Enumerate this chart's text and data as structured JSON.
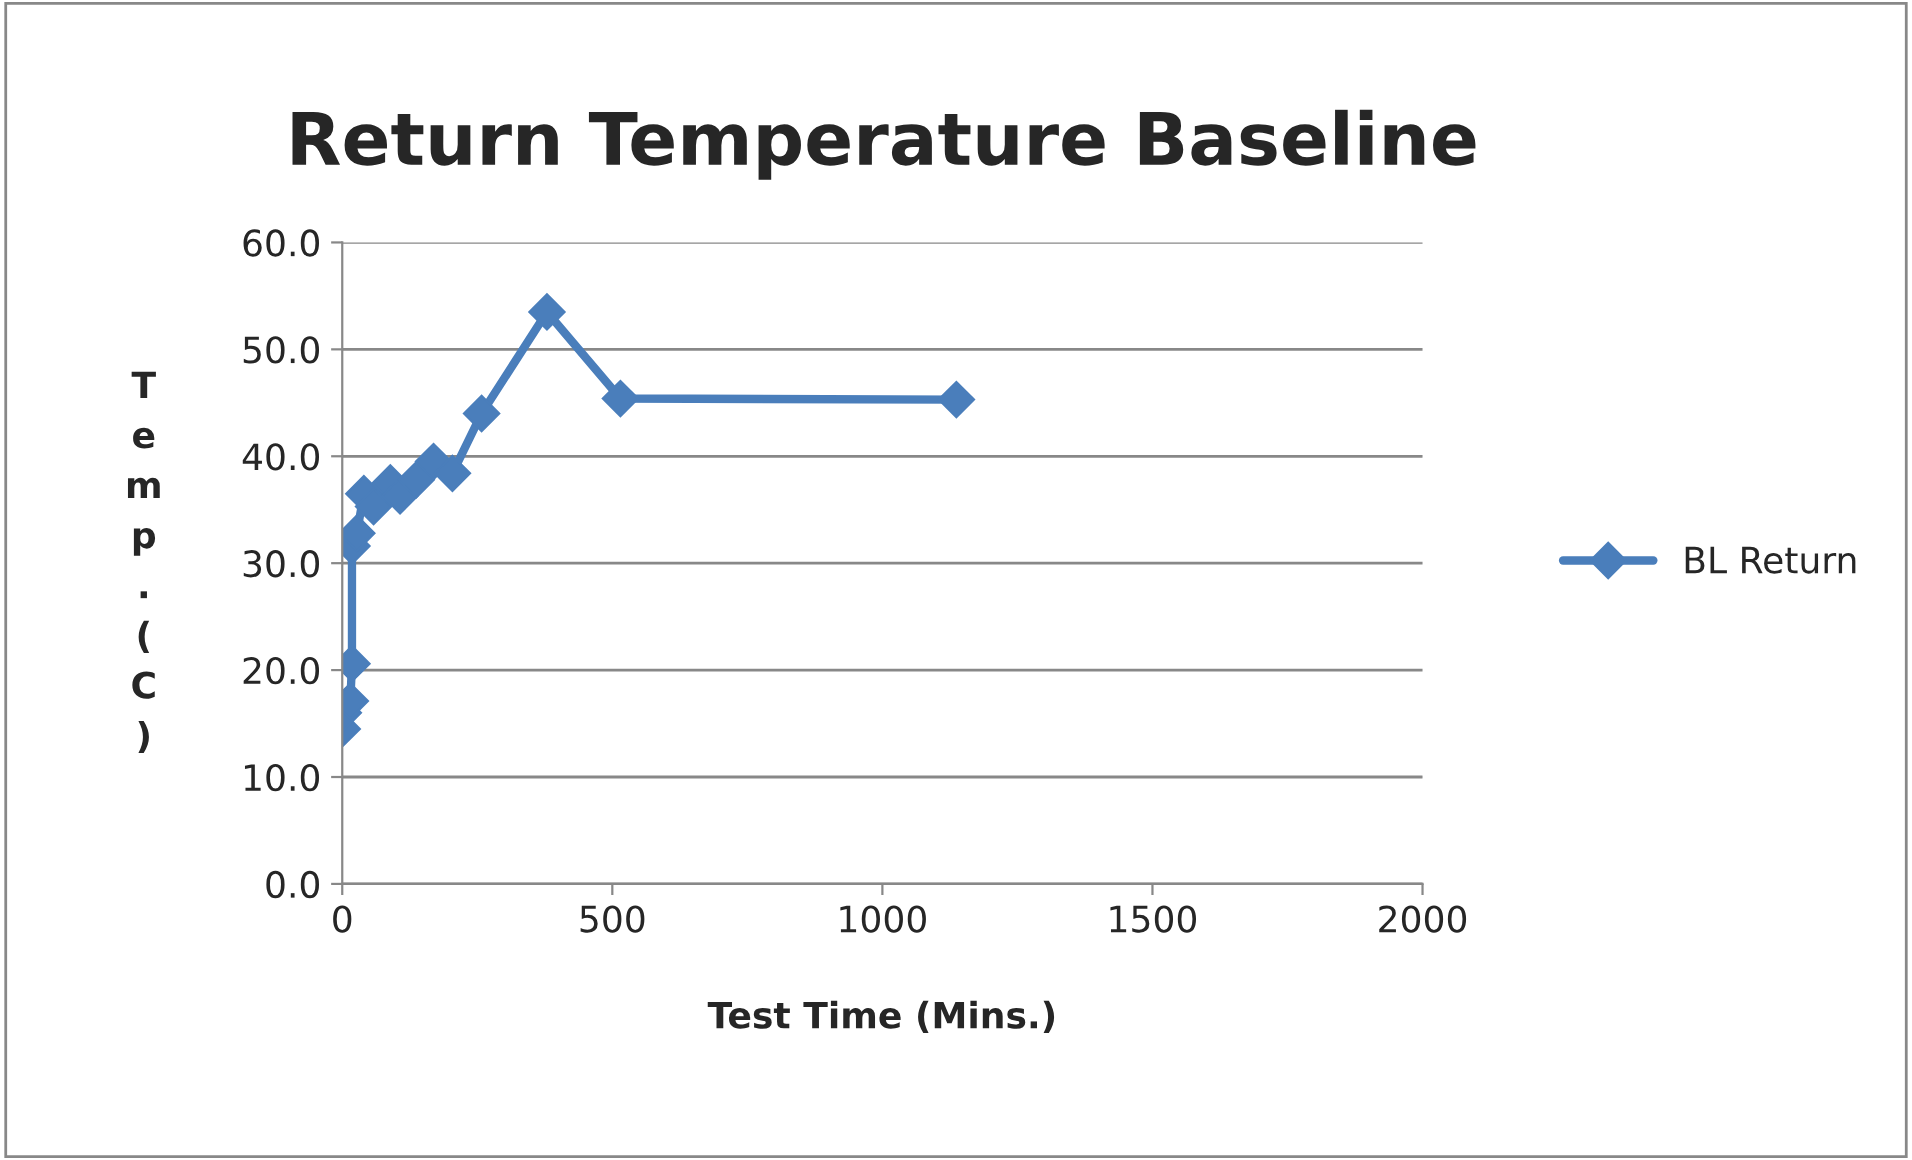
{
  "chart_data": {
    "type": "line",
    "title": "Return Temperature Baseline",
    "xlabel": "Test Time (Mins.)",
    "ylabel": "Temp. (C)",
    "series": [
      {
        "name": "BL Return",
        "color": "#4a7ebb",
        "x": [
          0,
          2,
          15,
          18,
          18,
          27,
          40,
          58,
          89,
          107,
          137,
          169,
          204,
          258,
          379,
          515,
          1137
        ],
        "values": [
          14.5,
          16.0,
          17.1,
          20.6,
          31.6,
          32.8,
          36.5,
          35.3,
          37.5,
          36.3,
          37.8,
          39.5,
          38.4,
          44.0,
          53.5,
          45.4,
          45.3
        ]
      }
    ],
    "xlim": [
      0,
      2000
    ],
    "xticks": [
      0,
      500,
      1000,
      1500,
      2000
    ],
    "ylim": [
      0,
      60
    ],
    "yticks": [
      {
        "value": 0,
        "label": "0.0"
      },
      {
        "value": 10,
        "label": "10.0"
      },
      {
        "value": 20,
        "label": "20.0"
      },
      {
        "value": 30,
        "label": "30.0"
      },
      {
        "value": 40,
        "label": "40.0"
      },
      {
        "value": 50,
        "label": "50.0"
      },
      {
        "value": 60,
        "label": "60.0"
      }
    ],
    "grid": "y",
    "legend": "right",
    "marker": "diamond",
    "line_style": "solid"
  }
}
